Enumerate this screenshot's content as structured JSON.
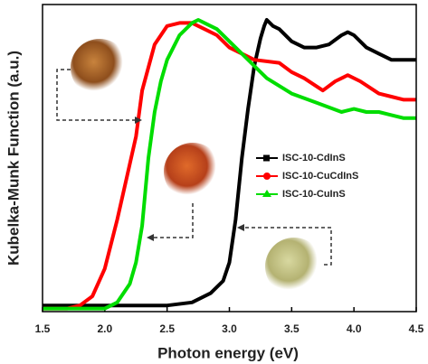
{
  "chart_data": {
    "type": "line",
    "x_label": "Photon energy (eV)",
    "y_label": "Kubelka-Munk Function (a.u.)",
    "xlim": [
      1.5,
      4.5
    ],
    "xticks": [
      1.5,
      {
        "value": 2,
        "label": "2.0"
      },
      2.5,
      {
        "value": 3,
        "label": "3.0"
      },
      3.5,
      {
        "value": 4,
        "label": "4.0"
      },
      4.5
    ],
    "ylim": [
      0,
      1
    ],
    "series": [
      {
        "name": "ISC-10-CdInS",
        "color": "#000000",
        "marker": "square",
        "x": [
          1.5,
          2.0,
          2.5,
          2.7,
          2.85,
          2.95,
          3.0,
          3.05,
          3.1,
          3.15,
          3.2,
          3.25,
          3.28,
          3.3,
          3.35,
          3.4,
          3.5,
          3.6,
          3.7,
          3.8,
          3.9,
          3.95,
          4.0,
          4.1,
          4.2,
          4.3,
          4.4,
          4.5
        ],
        "values": [
          0.02,
          0.02,
          0.02,
          0.03,
          0.06,
          0.1,
          0.16,
          0.3,
          0.5,
          0.66,
          0.8,
          0.89,
          0.93,
          0.95,
          0.93,
          0.92,
          0.88,
          0.86,
          0.86,
          0.87,
          0.9,
          0.91,
          0.9,
          0.86,
          0.84,
          0.82,
          0.82,
          0.82
        ]
      },
      {
        "name": "ISC-10-CuCdInS",
        "color": "#ff0000",
        "marker": "circle",
        "x": [
          1.5,
          1.7,
          1.8,
          1.9,
          2.0,
          2.1,
          2.2,
          2.25,
          2.3,
          2.4,
          2.5,
          2.6,
          2.7,
          2.8,
          2.9,
          3.0,
          3.2,
          3.4,
          3.5,
          3.6,
          3.75,
          3.85,
          3.95,
          4.05,
          4.2,
          4.3,
          4.4,
          4.5
        ],
        "values": [
          0.01,
          0.01,
          0.02,
          0.05,
          0.14,
          0.3,
          0.48,
          0.57,
          0.72,
          0.87,
          0.93,
          0.94,
          0.94,
          0.92,
          0.9,
          0.86,
          0.82,
          0.81,
          0.78,
          0.76,
          0.72,
          0.75,
          0.77,
          0.75,
          0.71,
          0.7,
          0.69,
          0.69
        ]
      },
      {
        "name": "ISC-10-CuInS",
        "color": "#00dd00",
        "marker": "triangle",
        "x": [
          1.5,
          1.9,
          2.0,
          2.1,
          2.2,
          2.25,
          2.3,
          2.35,
          2.4,
          2.45,
          2.5,
          2.6,
          2.7,
          2.75,
          2.8,
          2.9,
          3.0,
          3.1,
          3.2,
          3.3,
          3.5,
          3.7,
          3.9,
          4.0,
          4.1,
          4.2,
          4.3,
          4.4,
          4.5
        ],
        "values": [
          0.01,
          0.01,
          0.01,
          0.03,
          0.09,
          0.16,
          0.28,
          0.5,
          0.65,
          0.75,
          0.82,
          0.9,
          0.94,
          0.95,
          0.94,
          0.92,
          0.88,
          0.84,
          0.8,
          0.76,
          0.71,
          0.68,
          0.65,
          0.66,
          0.65,
          0.65,
          0.64,
          0.63,
          0.63
        ]
      }
    ]
  }
}
